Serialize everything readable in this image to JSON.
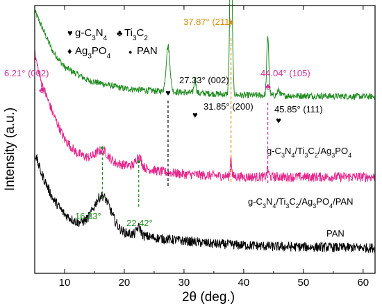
{
  "chart_data": {
    "type": "line",
    "xlabel": "2θ (deg.)",
    "ylabel": "Intensity (a.u.)",
    "xlim": [
      5,
      62
    ],
    "x_ticks": [
      10,
      20,
      30,
      40,
      50,
      60
    ],
    "y_ticks_labels": false,
    "grid": false,
    "series": [
      {
        "name": "g-C3N4/Ti3C2/Ag3PO4",
        "label_html": "g-C<sub>3</sub>N<sub>4</sub>/Ti<sub>3</sub>C<sub>2</sub>/Ag<sub>3</sub>PO<sub>4</sub>",
        "color": "#1f8b1f",
        "baseline": 0.66,
        "noise": 0.012,
        "slope_points": [
          [
            5,
            0.98
          ],
          [
            6,
            0.93
          ],
          [
            8,
            0.83
          ],
          [
            10,
            0.77
          ],
          [
            14,
            0.72
          ],
          [
            20,
            0.69
          ],
          [
            26,
            0.68
          ],
          [
            40,
            0.665
          ],
          [
            62,
            0.66
          ]
        ],
        "peaks": [
          [
            27.33,
            0.17,
            0.45
          ],
          [
            31.85,
            0.05,
            0.25
          ],
          [
            37.87,
            0.62,
            0.28
          ],
          [
            44.04,
            0.22,
            0.25
          ],
          [
            45.85,
            0.02,
            0.3
          ]
        ]
      },
      {
        "name": "g-C3N4/Ti3C2/Ag3PO4/PAN",
        "label_html": "g-C<sub>3</sub>N<sub>4</sub>/Ti<sub>3</sub>C<sub>2</sub>/Ag<sub>3</sub>PO<sub>4</sub>/PAN",
        "color": "#e6268c",
        "baseline": 0.36,
        "noise": 0.018,
        "slope_points": [
          [
            5,
            0.82
          ],
          [
            6,
            0.72
          ],
          [
            8,
            0.6
          ],
          [
            10,
            0.5
          ],
          [
            12,
            0.45
          ],
          [
            14,
            0.43
          ],
          [
            18,
            0.41
          ],
          [
            22,
            0.4
          ],
          [
            26,
            0.38
          ],
          [
            30,
            0.37
          ],
          [
            40,
            0.36
          ],
          [
            62,
            0.36
          ]
        ],
        "peaks": [
          [
            16.33,
            0.04,
            1.5
          ],
          [
            22.42,
            0.04,
            0.6
          ],
          [
            37.87,
            0.08,
            0.15
          ],
          [
            44.04,
            0.03,
            0.2
          ]
        ]
      },
      {
        "name": "PAN",
        "label_html": "PAN",
        "color": "#000000",
        "baseline": 0.1,
        "noise": 0.018,
        "slope_points": [
          [
            5,
            0.45
          ],
          [
            6,
            0.38
          ],
          [
            8,
            0.28
          ],
          [
            10,
            0.22
          ],
          [
            12,
            0.19
          ],
          [
            14,
            0.18
          ],
          [
            20,
            0.15
          ],
          [
            26,
            0.13
          ],
          [
            35,
            0.11
          ],
          [
            45,
            0.1
          ],
          [
            62,
            0.095
          ]
        ],
        "peaks": [
          [
            16.33,
            0.12,
            2.0
          ],
          [
            22.42,
            0.03,
            0.5
          ]
        ]
      }
    ],
    "annotations": [
      {
        "text": "6.21° (002)",
        "x": 6.21,
        "color": "#cc3399"
      },
      {
        "text": "27.33° (002)",
        "x": 27.33,
        "color": "#000000"
      },
      {
        "text": "31.85° (200)",
        "x": 31.85,
        "color": "#000000"
      },
      {
        "text": "37.87° (211)",
        "x": 37.87,
        "color": "#d98a00"
      },
      {
        "text": "44.04° (105)",
        "x": 44.04,
        "color": "#cc3399"
      },
      {
        "text": "45.85° (111)",
        "x": 45.85,
        "color": "#000000"
      },
      {
        "text": "16.33°",
        "x": 16.33,
        "color": "#1f8b1f"
      },
      {
        "text": "22.42°",
        "x": 22.42,
        "color": "#1f8b1f"
      }
    ],
    "legend": {
      "position": "top-left",
      "items": [
        {
          "symbol": "♥",
          "label_html": "g-C<tspan baseline-shift=\"sub\" font-size=\"10\">3</tspan>N<tspan baseline-shift=\"sub\" font-size=\"10\">4</tspan>"
        },
        {
          "symbol": "♣",
          "label_html": "Ti<tspan baseline-shift=\"sub\" font-size=\"10\">3</tspan>C<tspan baseline-shift=\"sub\" font-size=\"10\">2</tspan>"
        },
        {
          "symbol": "♦",
          "label_html": "Ag<tspan baseline-shift=\"sub\" font-size=\"10\">3</tspan>PO<tspan baseline-shift=\"sub\" font-size=\"10\">4</tspan>"
        },
        {
          "symbol": "●",
          "label_html": "PAN"
        }
      ]
    },
    "colors": {
      "g_c3n4_marker": "#000000",
      "ti3c2_marker": "#cc3399",
      "ag3po4_marker": "#d98a00",
      "pan_marker": "#1f8b1f"
    }
  }
}
